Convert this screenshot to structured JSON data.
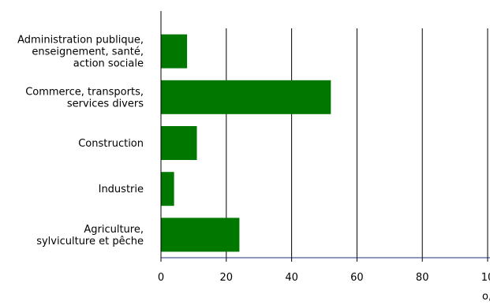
{
  "chart_data": {
    "type": "bar",
    "orientation": "horizontal",
    "categories": [
      [
        "Administration publique,",
        "enseignement, santé,",
        "action sociale"
      ],
      [
        "Commerce, transports,",
        "services divers"
      ],
      [
        "Construction"
      ],
      [
        "Industrie"
      ],
      [
        "Agriculture,",
        "sylviculture et pêche"
      ]
    ],
    "values": [
      8,
      52,
      11,
      4,
      24
    ],
    "xlim": [
      0,
      100
    ],
    "xticks": [
      "0",
      "20",
      "40",
      "60",
      "80",
      "10"
    ],
    "unit_label": "o,",
    "grid": true,
    "colors": {
      "bar": "#007800",
      "axis": "#000000",
      "xaxis": "#1f2f7a",
      "grid": "#000000"
    }
  }
}
